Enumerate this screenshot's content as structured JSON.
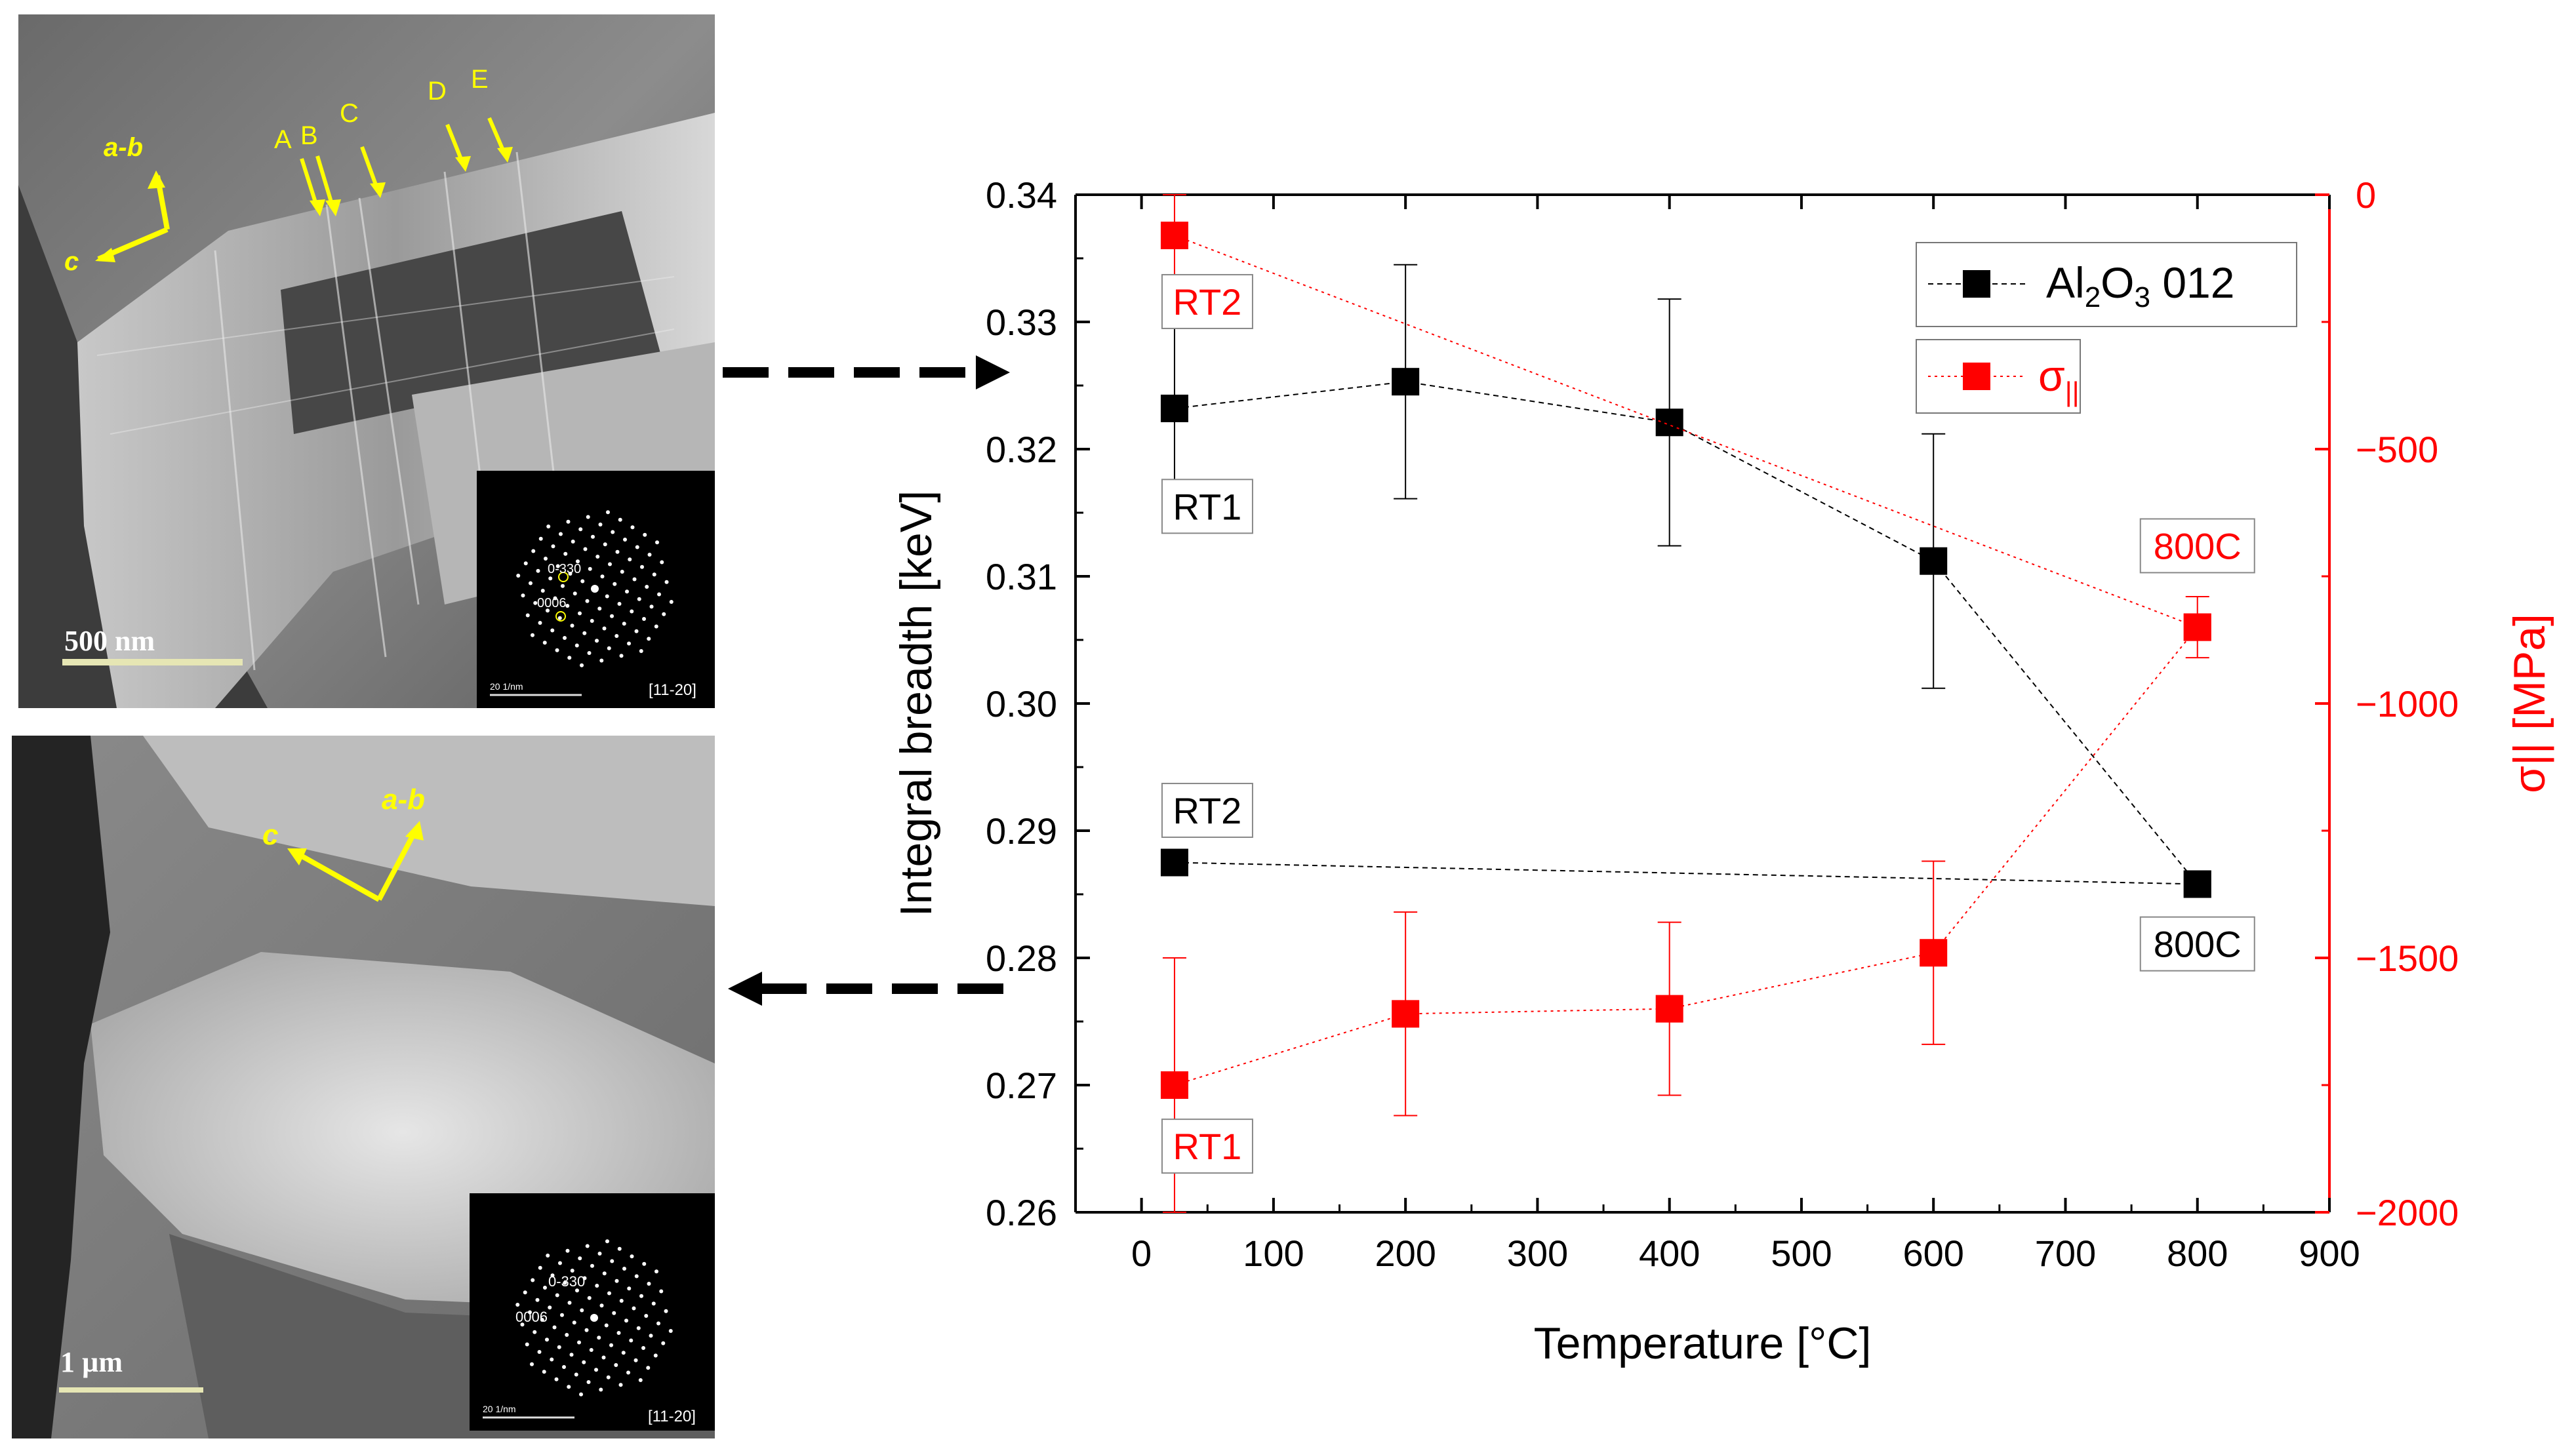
{
  "tem_top": {
    "scale_bar": "500 nm",
    "axis_ab": "a-b",
    "axis_c": "c",
    "markers": [
      "A",
      "B",
      "C",
      "D",
      "E"
    ],
    "inset": {
      "spot1": "0-330",
      "spot2": "0006",
      "scale": "20 1/nm",
      "zone": "[11-20]"
    }
  },
  "tem_bottom": {
    "scale_bar": "1 µm",
    "axis_ab": "a-b",
    "axis_c": "c",
    "inset": {
      "spot1": "0-330",
      "spot2": "0006",
      "scale": "20 1/nm",
      "zone": "[11-20]"
    }
  },
  "colors": {
    "black_series": "#000000",
    "red_series": "#ff0000",
    "arrow": "#ffff00"
  },
  "chart_data": {
    "type": "scatter",
    "xlabel": "Temperature [°C]",
    "ylabel_left": "Integral breadth [keV]",
    "ylabel_right": "σ|| [MPa]",
    "xlim": [
      -50,
      900
    ],
    "ylim_left": [
      0.26,
      0.34
    ],
    "ylim_right": [
      -2000,
      0
    ],
    "x_ticks": [
      "0",
      "100",
      "200",
      "300",
      "400",
      "500",
      "600",
      "700",
      "800",
      "900"
    ],
    "y_left_ticks": [
      "0.26",
      "0.27",
      "0.28",
      "0.29",
      "0.30",
      "0.31",
      "0.32",
      "0.33",
      "0.34"
    ],
    "y_right_ticks": [
      "0",
      "−500",
      "−1000",
      "−1500",
      "−2000"
    ],
    "legend": {
      "black": "Al2O3 012",
      "red": "σ||"
    },
    "series": [
      {
        "name": "Al2O3 012",
        "axis": "left",
        "color": "#000000",
        "x": [
          25,
          200,
          400,
          600,
          800
        ],
        "y": [
          0.3232,
          0.3253,
          0.3221,
          0.3112,
          0.2858
        ],
        "err": [
          0.0095,
          0.0092,
          0.0097,
          0.01,
          0.0
        ]
      },
      {
        "name": "Al2O3 012 RT2",
        "axis": "left",
        "color": "#000000",
        "x": [
          25,
          800
        ],
        "y": [
          0.2875,
          0.2858
        ],
        "err": [
          0,
          0
        ]
      },
      {
        "name": "σ||",
        "axis": "right",
        "color": "#ff0000",
        "x": [
          25,
          200,
          400,
          600,
          800
        ],
        "y": [
          -1750,
          -1610,
          -1600,
          -1490,
          -850
        ],
        "err": [
          250,
          200,
          170,
          180,
          60
        ]
      },
      {
        "name": "σ|| RT2",
        "axis": "right",
        "color": "#ff0000",
        "x": [
          25,
          800
        ],
        "y": [
          -80,
          -850
        ],
        "err": [
          80,
          0
        ]
      }
    ],
    "annotations": [
      {
        "text": "RT1",
        "color": "#000000"
      },
      {
        "text": "RT2",
        "color": "#000000"
      },
      {
        "text": "800C",
        "color": "#000000"
      },
      {
        "text": "RT2",
        "color": "#ff0000"
      },
      {
        "text": "RT1",
        "color": "#ff0000"
      },
      {
        "text": "800C",
        "color": "#ff0000"
      }
    ]
  }
}
